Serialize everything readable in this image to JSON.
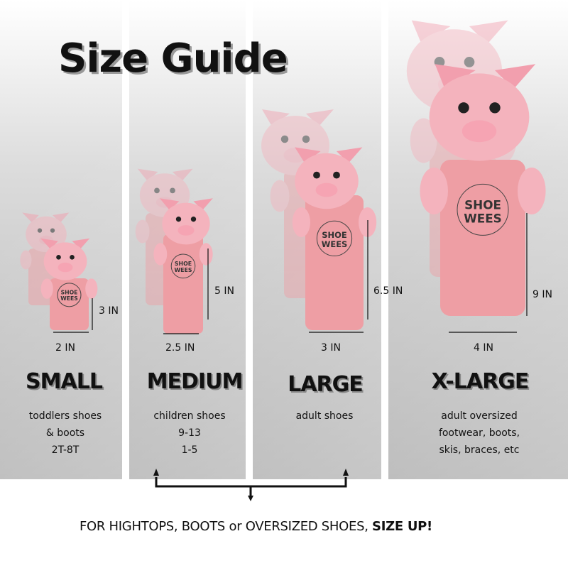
{
  "title": "Size Guide",
  "colors": {
    "pig": "#f4b3bd",
    "body": "#ee9ea4",
    "text": "#111111"
  },
  "sizes": [
    {
      "name": "SMALL",
      "desc": [
        "toddlers shoes",
        "& boots",
        "2T-8T"
      ],
      "height": "3 IN",
      "width": "2 IN"
    },
    {
      "name": "MEDIUM",
      "desc": [
        "children shoes",
        "9-13",
        "1-5"
      ],
      "height": "5 IN",
      "width": "2.5 IN"
    },
    {
      "name": "LARGE",
      "desc": [
        "adult shoes"
      ],
      "height": "6.5 IN",
      "width": "3 IN"
    },
    {
      "name": "X-LARGE",
      "desc": [
        "adult oversized",
        "footwear, boots,",
        "skis, braces, etc"
      ],
      "height": "9 IN",
      "width": "4 IN"
    }
  ],
  "logo": "SHOE WEES",
  "footer": {
    "text": "FOR  HIGHTOPS,  BOOTS or OVERSIZED  SHOES, ",
    "emphasis": "SIZE UP!"
  }
}
